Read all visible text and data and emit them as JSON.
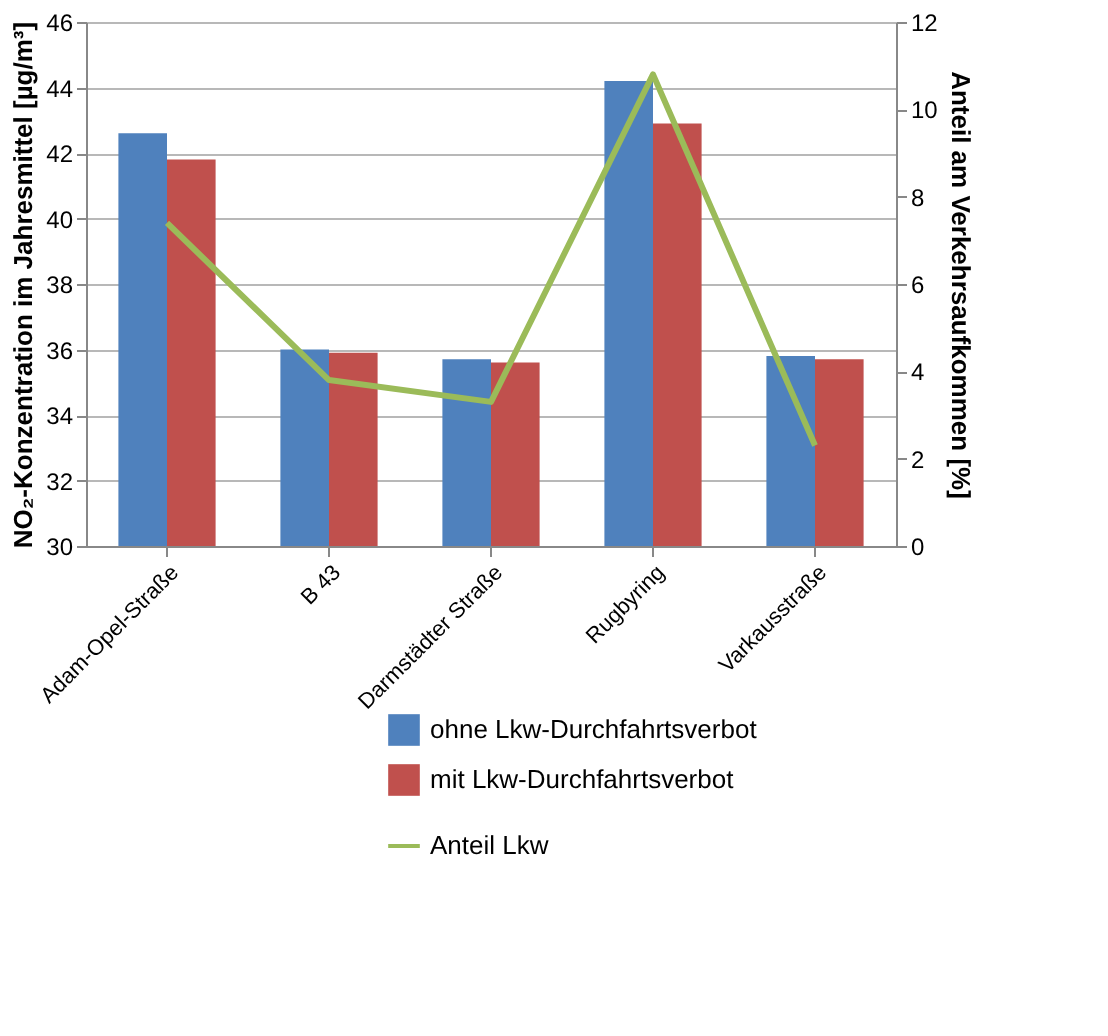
{
  "chart_data": {
    "type": "bar",
    "ylabel": "NO₂-Konzentration im Jahresmittel [µg/m³]",
    "y2label": "Anteil am Verkehrsaufkommen [%]",
    "categories": [
      "Adam-Opel-Straße",
      "B 43",
      "Darmstädter Straße",
      "Rugbyring",
      "Varkausstraße"
    ],
    "series": [
      {
        "name": "ohne Lkw-Durchfahrtsverbot",
        "color": "#4f81bd",
        "values": [
          42.6,
          36.0,
          35.7,
          44.2,
          35.8
        ]
      },
      {
        "name": "mit Lkw-Durchfahrtsverbot",
        "color": "#c0504d",
        "values": [
          41.8,
          35.9,
          35.6,
          42.9,
          35.7
        ]
      },
      {
        "name": "Anteil Lkw",
        "type": "line",
        "axis": "y2",
        "color": "#9bbb59",
        "values": [
          7.4,
          3.8,
          3.3,
          10.8,
          2.3
        ]
      }
    ],
    "ylim": [
      30,
      46
    ],
    "yticks": [
      30,
      32,
      34,
      36,
      38,
      40,
      42,
      44,
      46
    ],
    "y2lim": [
      0,
      12
    ],
    "y2ticks": [
      0,
      2,
      4,
      6,
      8,
      10,
      12
    ],
    "grid": "y",
    "legend": "bottom"
  }
}
